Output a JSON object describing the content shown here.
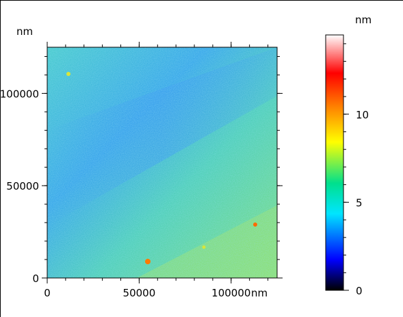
{
  "plot": {
    "y_unit_label": "nm",
    "x_unit_label": "nm",
    "x_ticks": [
      {
        "value": 0,
        "label": "0"
      },
      {
        "value": 50000,
        "label": "50000"
      },
      {
        "value": 100000,
        "label": "100000"
      }
    ],
    "y_ticks": [
      {
        "value": 0,
        "label": "0"
      },
      {
        "value": 50000,
        "label": "50000"
      },
      {
        "value": 100000,
        "label": "100000"
      }
    ],
    "x_range": [
      0,
      125000
    ],
    "y_range": [
      0,
      125000
    ]
  },
  "colorbar": {
    "unit_label": "nm",
    "ticks": [
      {
        "value": 0,
        "label": "0"
      },
      {
        "value": 5,
        "label": "5"
      },
      {
        "value": 10,
        "label": "10"
      }
    ],
    "range": [
      0,
      14.5
    ],
    "colors": [
      "#000000",
      "#0000ff",
      "#00e5ff",
      "#00e08c",
      "#ffff00",
      "#ff8000",
      "#ff0000",
      "#ffffff"
    ]
  }
}
